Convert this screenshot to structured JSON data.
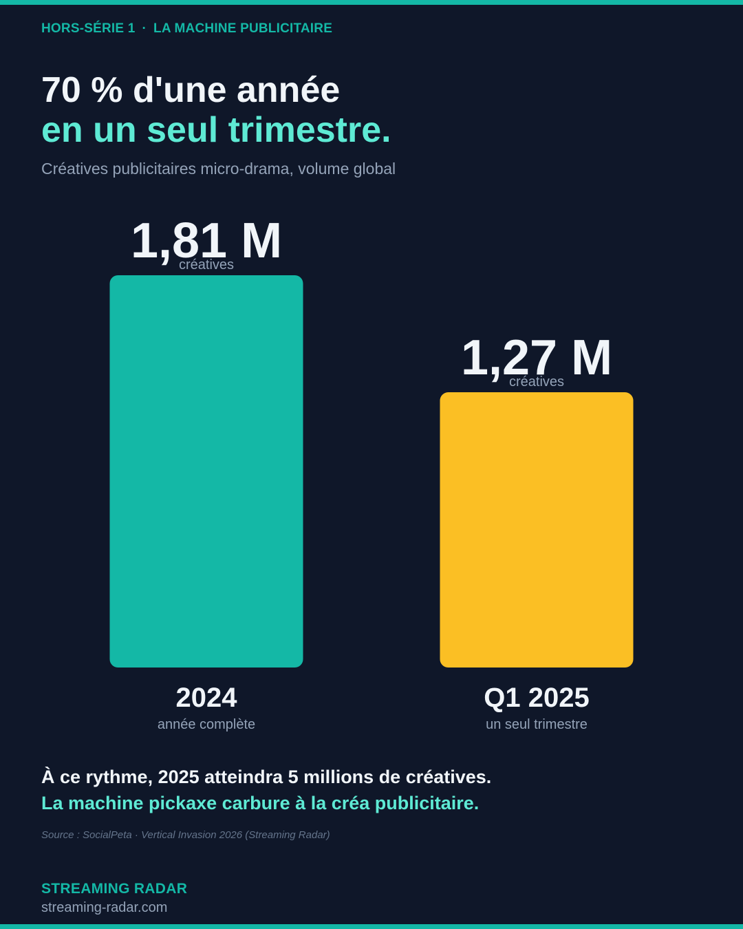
{
  "header": {
    "series_label": "HORS-SÉRIE 1",
    "separator": "·",
    "section_label": "LA MACHINE PUBLICITAIRE",
    "headline_line1": "70 % d'une année",
    "headline_line2": "en un seul trimestre.",
    "subtitle": "Créatives publicitaires micro-drama, volume global"
  },
  "colors": {
    "background": "#0f1729",
    "teal": "#14b8a6",
    "mint": "#5eead4",
    "yellow": "#fbbf24",
    "muted": "#94a3b8"
  },
  "chart_data": {
    "type": "bar",
    "title": "Créatives publicitaires micro-drama, volume global",
    "categories": [
      "2024",
      "Q1 2025"
    ],
    "category_sublabels": [
      "année complète",
      "un seul trimestre"
    ],
    "values": [
      1.81,
      1.27
    ],
    "value_labels": [
      "1,81 M",
      "1,27 M"
    ],
    "unit_label": "créatives",
    "unit": "millions de créatives",
    "bar_colors": [
      "#14b8a6",
      "#fbbf24"
    ],
    "ylim": [
      0,
      1.81
    ],
    "grid": false,
    "legend": "none",
    "xlabel": "",
    "ylabel": ""
  },
  "footer": {
    "conclusion_line1": "À ce rythme, 2025 atteindra 5 millions de créatives.",
    "conclusion_line2": "La machine pickaxe carbure à la créa publicitaire.",
    "source": "Source : SocialPeta · Vertical Invasion 2026 (Streaming Radar)",
    "brand": "STREAMING RADAR",
    "url": "streaming-radar.com"
  }
}
